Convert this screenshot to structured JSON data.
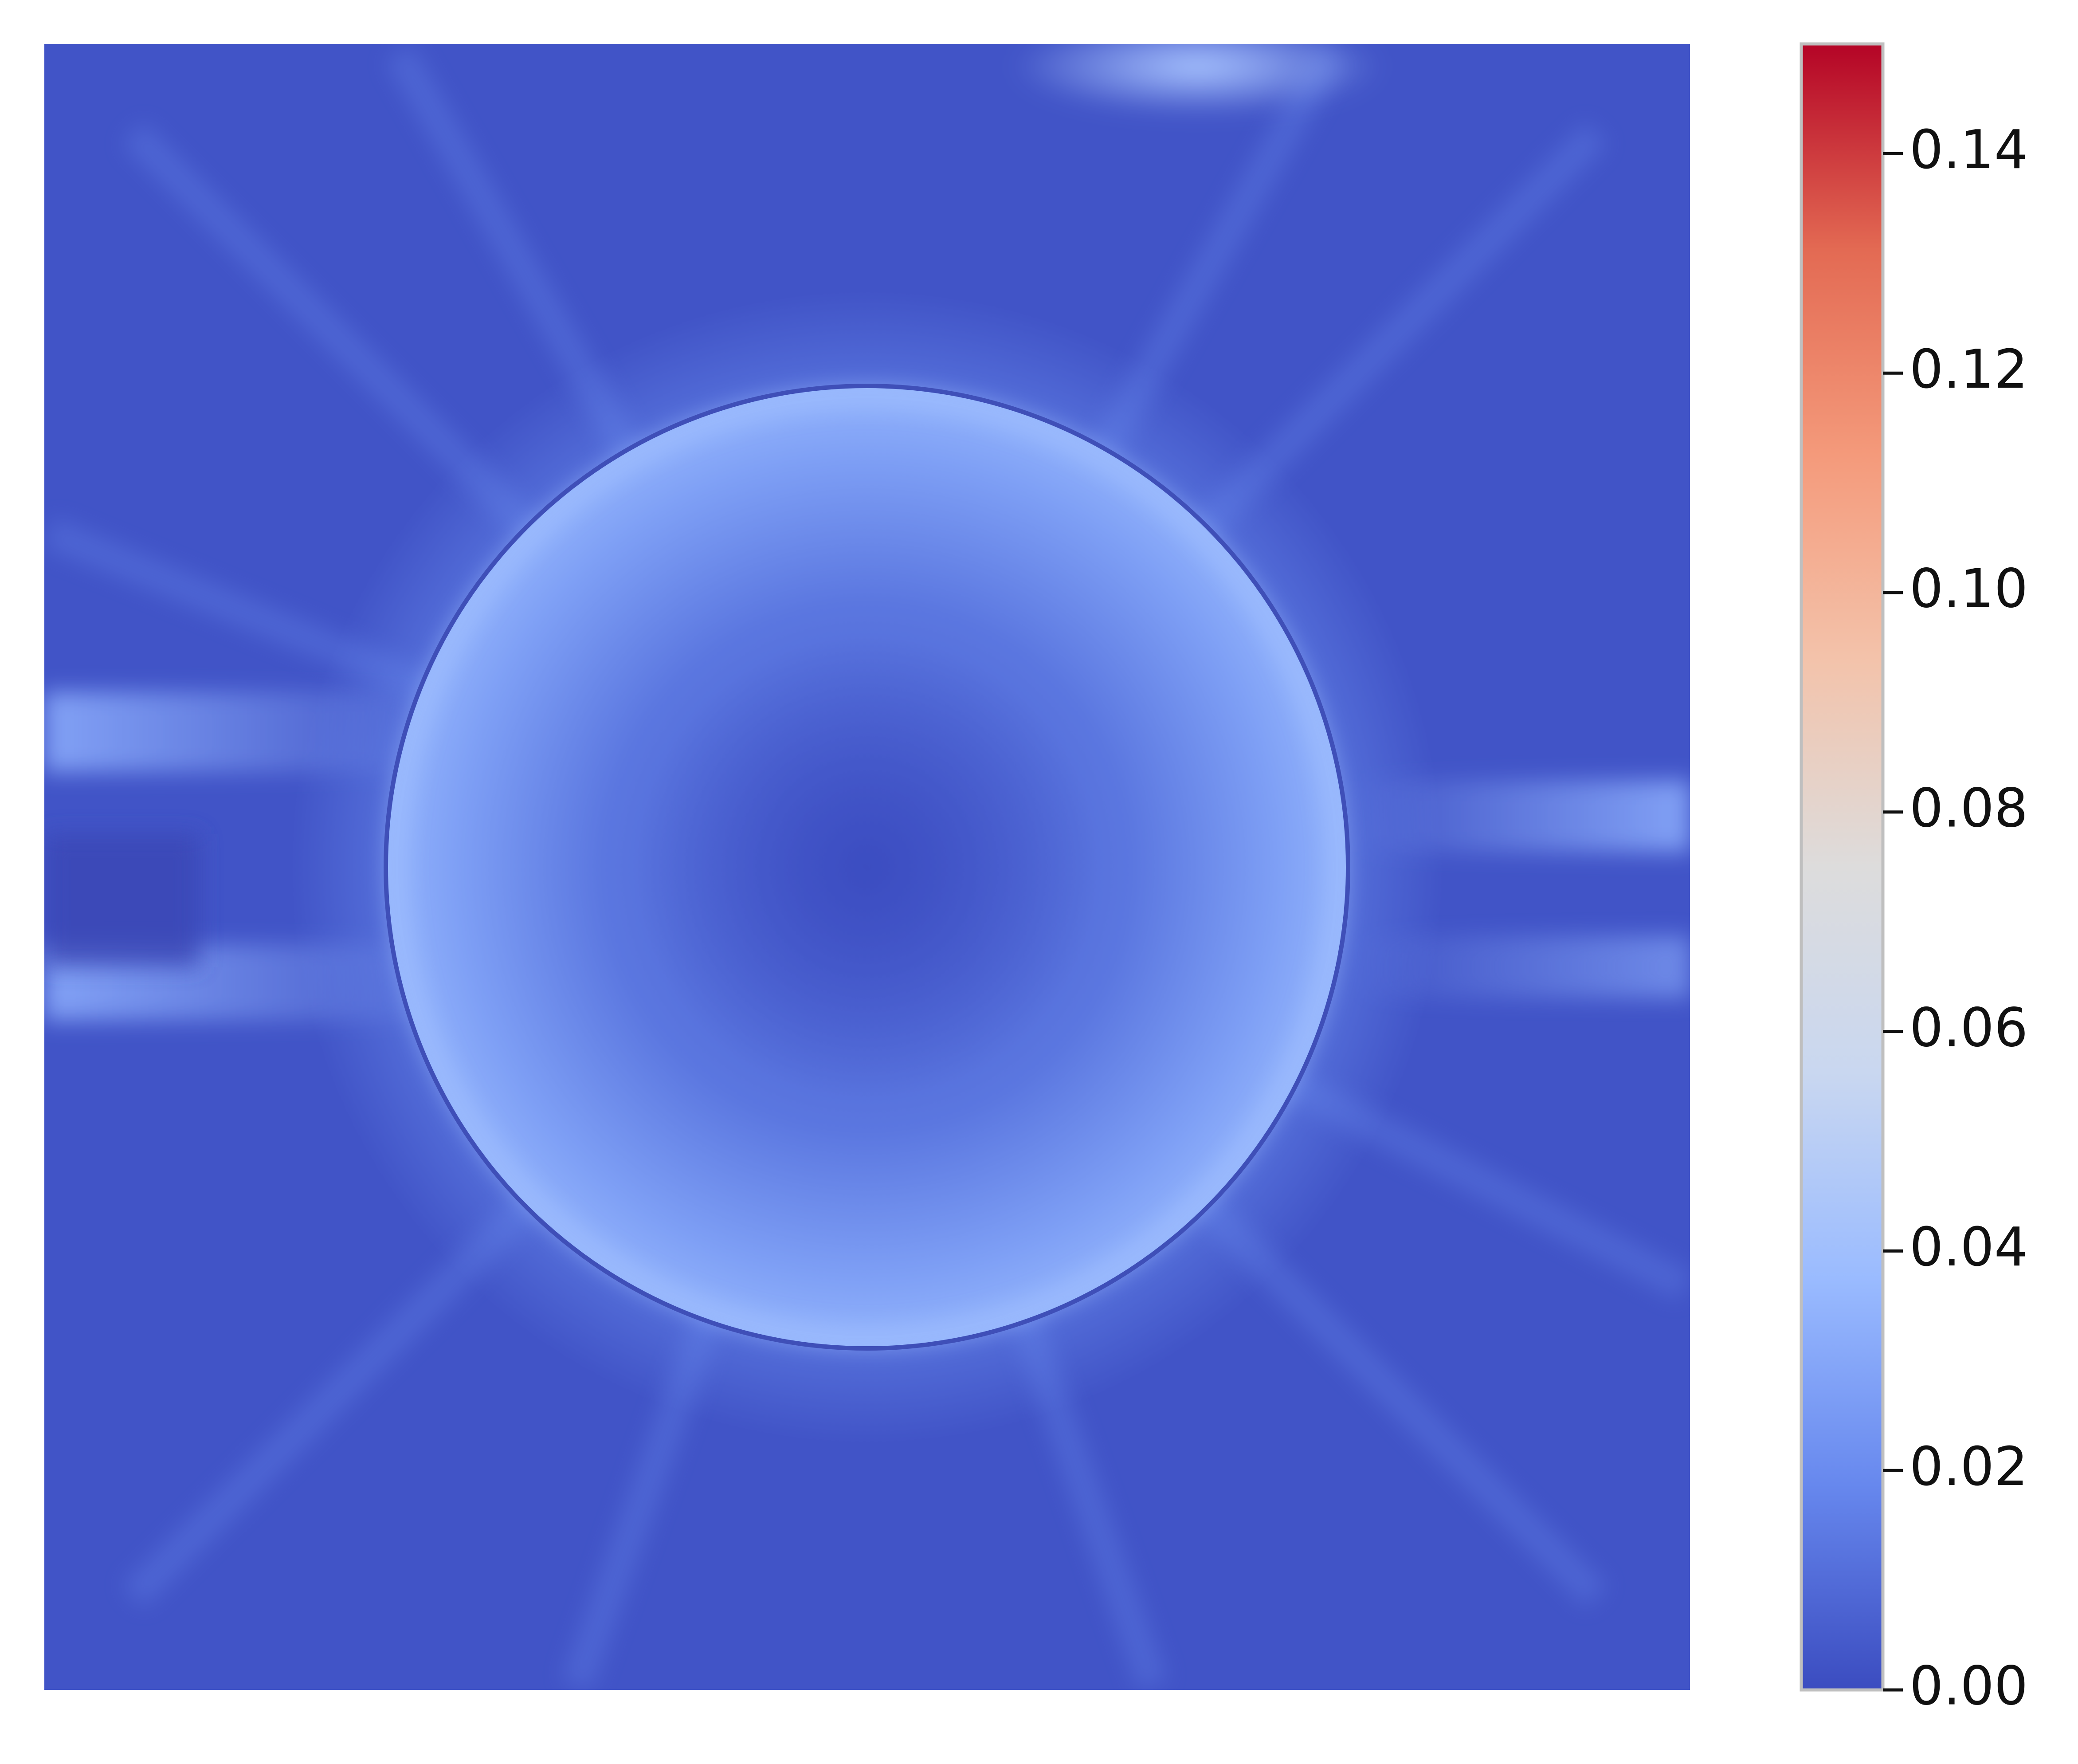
{
  "chart_data": {
    "type": "heatmap",
    "title": "",
    "xlabel": "",
    "ylabel": "",
    "axes_visible": false,
    "colormap": "coolwarm",
    "colormap_stops": [
      "#3b4cc0",
      "#6788ee",
      "#9abbff",
      "#c9d7f0",
      "#dddcdc",
      "#f3c3ab",
      "#f49a7b",
      "#e36a53",
      "#b40426"
    ],
    "background_color": "#3b4cc0",
    "vmin": 0.0,
    "vmax": 0.15,
    "colorbar": {
      "placement": "right",
      "ticks": [
        0.0,
        0.02,
        0.04,
        0.06,
        0.08,
        0.1,
        0.12,
        0.14
      ],
      "tick_labels": [
        "0.00",
        "0.02",
        "0.04",
        "0.06",
        "0.08",
        "0.10",
        "0.12",
        "0.14"
      ]
    },
    "features": [
      {
        "kind": "ring",
        "description": "circular interface of elevated values",
        "center": [
          0.5,
          0.5
        ],
        "radius": 0.29,
        "value_inner_edge": 0.045,
        "value_center": 0.005
      },
      {
        "kind": "horizontal-band",
        "side": "left",
        "value": 0.035
      },
      {
        "kind": "horizontal-band",
        "side": "right",
        "value": 0.035
      },
      {
        "kind": "spot",
        "side": "top",
        "value": 0.05
      }
    ]
  }
}
